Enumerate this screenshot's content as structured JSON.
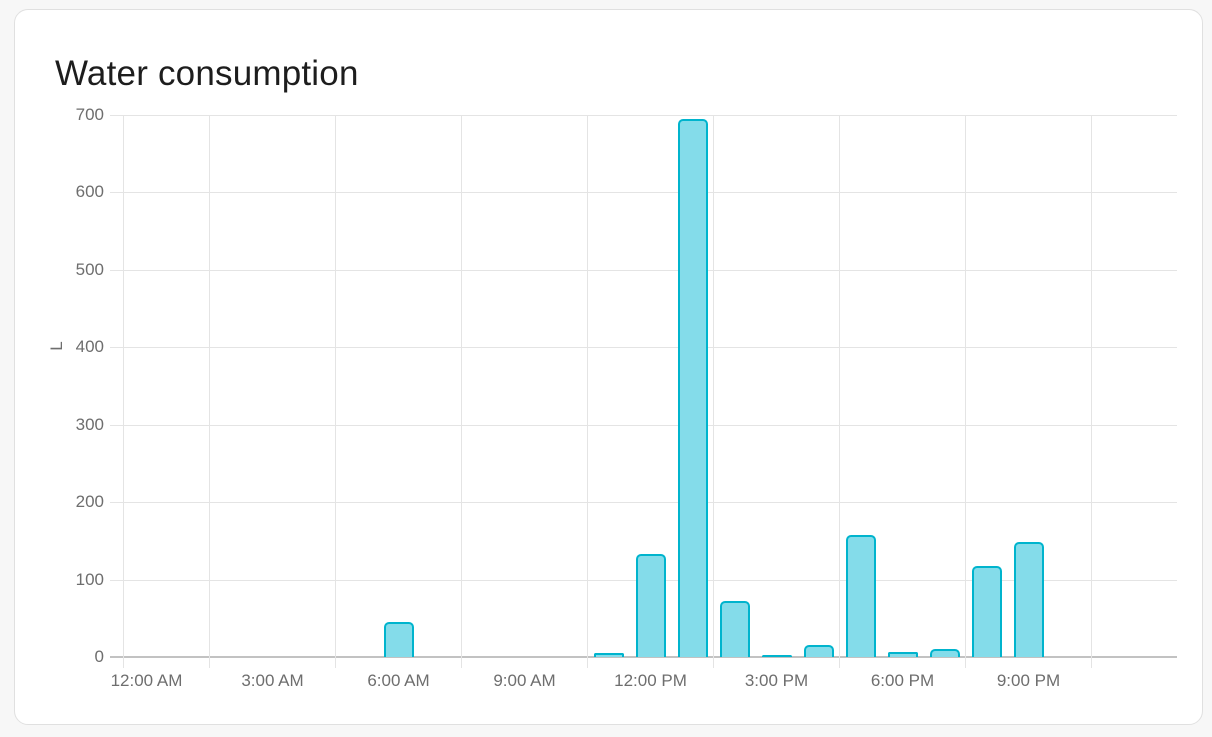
{
  "card": {
    "title": "Water consumption"
  },
  "chart_data": {
    "type": "bar",
    "title": "Water consumption",
    "xlabel": "",
    "ylabel": "L",
    "unit": "L",
    "ylim": [
      0,
      700
    ],
    "y_ticks": [
      0,
      100,
      200,
      300,
      400,
      500,
      600,
      700
    ],
    "x_axis_labels": [
      "12:00 AM",
      "3:00 AM",
      "6:00 AM",
      "9:00 AM",
      "12:00 PM",
      "3:00 PM",
      "6:00 PM",
      "9:00 PM"
    ],
    "categories": [
      "12:00 AM",
      "1:00 AM",
      "2:00 AM",
      "3:00 AM",
      "4:00 AM",
      "5:00 AM",
      "6:00 AM",
      "7:00 AM",
      "8:00 AM",
      "9:00 AM",
      "10:00 AM",
      "11:00 AM",
      "12:00 PM",
      "1:00 PM",
      "2:00 PM",
      "3:00 PM",
      "4:00 PM",
      "5:00 PM",
      "6:00 PM",
      "7:00 PM",
      "8:00 PM",
      "9:00 PM",
      "10:00 PM",
      "11:00 PM"
    ],
    "values": [
      0,
      0,
      0,
      0,
      0,
      0,
      45,
      0,
      0,
      0,
      0,
      5,
      133,
      695,
      72,
      2,
      16,
      158,
      7,
      10,
      118,
      149,
      0,
      0
    ],
    "grid": true,
    "legend_position": "none",
    "colors": {
      "bar_fill": "#84dcea",
      "bar_border": "#00b4cd"
    }
  },
  "colors": {
    "page_bg": "#f7f7f7",
    "card_bg": "#ffffff",
    "card_border": "#e0e0e0",
    "grid_line": "#e4e4e4",
    "axis_line": "#c2c2c2",
    "tick_text": "#6e6e6e",
    "title_text": "#1d1d1d"
  }
}
